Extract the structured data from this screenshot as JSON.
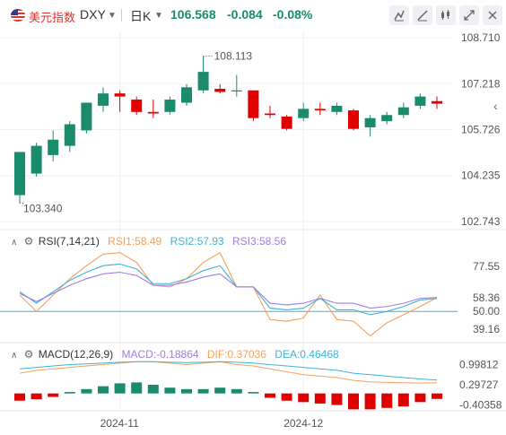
{
  "header": {
    "symbol_name": "美元指数",
    "symbol_code": "DXY",
    "period": "日K",
    "price": "106.568",
    "change": "-0.084",
    "change_pct": "-0.08%"
  },
  "colors": {
    "up": "#1a8b6c",
    "down": "#e00000",
    "rsi1": "#f5a05a",
    "rsi2": "#3cb4d8",
    "rsi3": "#a17ce0"
  },
  "main_chart": {
    "y_ticks": [
      "108.710",
      "107.218",
      "105.726",
      "104.235",
      "102.743"
    ],
    "max_label": "108.113",
    "min_label": "103.340",
    "x_labels": [
      "2024-11",
      "2024-12"
    ],
    "candles": [
      {
        "o": 103.6,
        "h": 105.0,
        "l": 103.34,
        "c": 105.0
      },
      {
        "o": 104.3,
        "h": 105.3,
        "l": 104.2,
        "c": 105.2
      },
      {
        "o": 104.9,
        "h": 105.7,
        "l": 104.7,
        "c": 105.4
      },
      {
        "o": 105.2,
        "h": 106.0,
        "l": 105.0,
        "c": 105.9
      },
      {
        "o": 105.7,
        "h": 106.6,
        "l": 105.6,
        "c": 106.6
      },
      {
        "o": 106.5,
        "h": 107.1,
        "l": 106.3,
        "c": 106.9
      },
      {
        "o": 106.9,
        "h": 107.0,
        "l": 106.3,
        "c": 106.8
      },
      {
        "o": 106.7,
        "h": 106.8,
        "l": 106.2,
        "c": 106.3
      },
      {
        "o": 106.3,
        "h": 106.7,
        "l": 106.1,
        "c": 106.25
      },
      {
        "o": 106.3,
        "h": 106.8,
        "l": 106.2,
        "c": 106.7
      },
      {
        "o": 106.6,
        "h": 107.2,
        "l": 106.5,
        "c": 107.1
      },
      {
        "o": 107.0,
        "h": 108.113,
        "l": 106.9,
        "c": 107.6
      },
      {
        "o": 107.05,
        "h": 107.2,
        "l": 106.9,
        "c": 106.95
      },
      {
        "o": 107.0,
        "h": 107.5,
        "l": 106.8,
        "c": 107.0
      },
      {
        "o": 107.0,
        "h": 107.0,
        "l": 106.0,
        "c": 106.1
      },
      {
        "o": 106.25,
        "h": 106.5,
        "l": 106.1,
        "c": 106.2
      },
      {
        "o": 106.15,
        "h": 106.2,
        "l": 105.7,
        "c": 105.75
      },
      {
        "o": 106.1,
        "h": 106.6,
        "l": 106.0,
        "c": 106.4
      },
      {
        "o": 106.4,
        "h": 106.6,
        "l": 106.2,
        "c": 106.35
      },
      {
        "o": 106.3,
        "h": 106.6,
        "l": 106.2,
        "c": 106.5
      },
      {
        "o": 106.35,
        "h": 106.4,
        "l": 105.7,
        "c": 105.75
      },
      {
        "o": 105.8,
        "h": 106.2,
        "l": 105.5,
        "c": 106.1
      },
      {
        "o": 106.0,
        "h": 106.3,
        "l": 105.9,
        "c": 106.2
      },
      {
        "o": 106.2,
        "h": 106.6,
        "l": 106.1,
        "c": 106.45
      },
      {
        "o": 106.5,
        "h": 106.9,
        "l": 106.4,
        "c": 106.8
      },
      {
        "o": 106.65,
        "h": 106.8,
        "l": 106.4,
        "c": 106.568
      }
    ]
  },
  "rsi": {
    "title": "RSI(7,14,21)",
    "rsi1_label": "RSI1:58.49",
    "rsi2_label": "RSI2:57.93",
    "rsi3_label": "RSI3:58.56",
    "y_ticks": [
      "77.55",
      "58.36",
      "50.00",
      "39.16"
    ],
    "rsi1": [
      60,
      50,
      60,
      70,
      78,
      85,
      86,
      80,
      66,
      65,
      70,
      80,
      86,
      65,
      65,
      45,
      44,
      46,
      60,
      45,
      44,
      35,
      43,
      48,
      53,
      58.49
    ],
    "rsi2": [
      62,
      55,
      62,
      69,
      74,
      78,
      79,
      76,
      67,
      67,
      70,
      75,
      78,
      65,
      65,
      52,
      51,
      52,
      58,
      51,
      51,
      48,
      50,
      53,
      57,
      57.93
    ],
    "rsi3": [
      61,
      56,
      61,
      66,
      70,
      73,
      74,
      72,
      66,
      66,
      68,
      71,
      73,
      65,
      65,
      55,
      54,
      55,
      58,
      55,
      55,
      52,
      53,
      55,
      58,
      58.56
    ]
  },
  "macd": {
    "title": "MACD(12,26,9)",
    "macd_label": "MACD:-0.18864",
    "dif_label": "DIF:0.37036",
    "dea_label": "DEA:0.46468",
    "y_ticks": [
      "0.99812",
      "0.29727",
      "-0.40358"
    ],
    "hist": [
      -0.25,
      -0.2,
      -0.12,
      0.05,
      0.15,
      0.25,
      0.35,
      0.38,
      0.3,
      0.2,
      0.15,
      0.15,
      0.2,
      0.15,
      0.05,
      -0.15,
      -0.25,
      -0.3,
      -0.35,
      -0.4,
      -0.55,
      -0.55,
      -0.5,
      -0.45,
      -0.3,
      -0.18864
    ],
    "dif": [
      0.7,
      0.8,
      0.85,
      0.9,
      0.95,
      1.0,
      1.05,
      1.1,
      1.1,
      1.05,
      1.0,
      1.05,
      1.1,
      1.0,
      0.95,
      0.85,
      0.75,
      0.65,
      0.6,
      0.55,
      0.45,
      0.4,
      0.38,
      0.37,
      0.36,
      0.37036
    ],
    "dea": [
      0.85,
      0.9,
      0.95,
      1.0,
      1.02,
      1.05,
      1.08,
      1.1,
      1.1,
      1.08,
      1.07,
      1.08,
      1.1,
      1.08,
      1.05,
      1.0,
      0.95,
      0.9,
      0.85,
      0.8,
      0.7,
      0.65,
      0.6,
      0.55,
      0.5,
      0.46468
    ]
  }
}
